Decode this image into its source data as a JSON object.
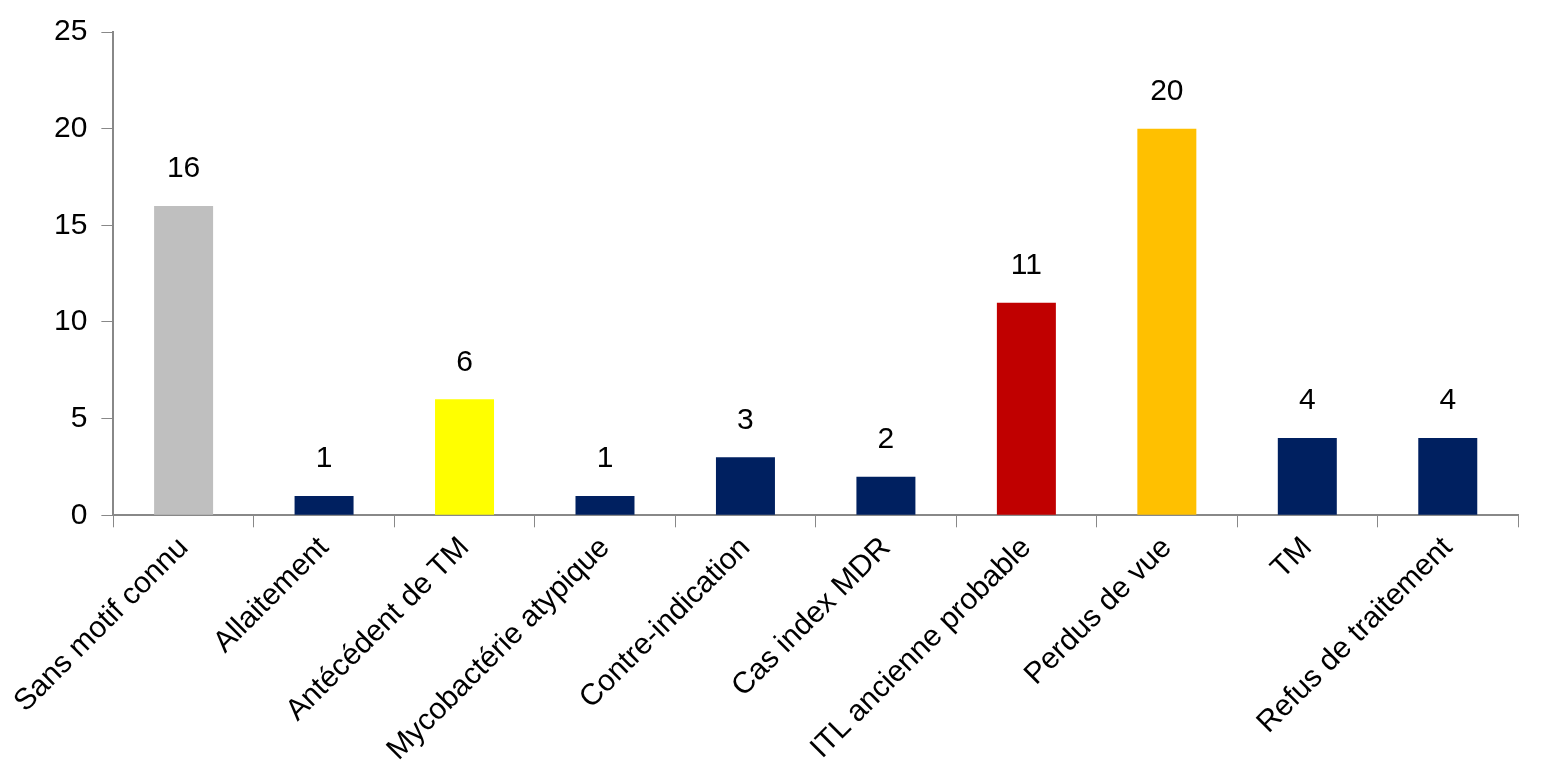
{
  "chart_data": {
    "type": "bar",
    "categories": [
      "Sans motif connu",
      "Allaitement",
      "Antécédent de TM",
      "Mycobactérie atypique",
      "Contre-indication",
      "Cas index MDR",
      "ITL ancienne probable",
      "Perdus de vue",
      "TM",
      "Refus de traitement"
    ],
    "values": [
      16,
      1,
      6,
      1,
      3,
      2,
      11,
      20,
      4,
      4
    ],
    "colors": [
      "#bfbfbf",
      "#002060",
      "#ffff00",
      "#002060",
      "#002060",
      "#002060",
      "#c00000",
      "#ffc000",
      "#002060",
      "#002060"
    ],
    "ylim": [
      0,
      25
    ],
    "yticks": [
      0,
      5,
      10,
      15,
      20,
      25
    ],
    "grid": false,
    "legend": false,
    "data_labels": true
  }
}
